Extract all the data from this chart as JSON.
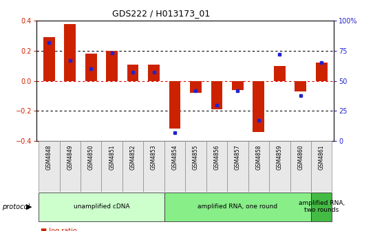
{
  "title": "GDS222 / H013173_01",
  "samples": [
    "GSM4848",
    "GSM4849",
    "GSM4850",
    "GSM4851",
    "GSM4852",
    "GSM4853",
    "GSM4854",
    "GSM4855",
    "GSM4856",
    "GSM4857",
    "GSM4858",
    "GSM4859",
    "GSM4860",
    "GSM4861"
  ],
  "log_ratio": [
    0.29,
    0.38,
    0.18,
    0.2,
    0.11,
    0.11,
    -0.32,
    -0.08,
    -0.19,
    -0.06,
    -0.34,
    0.1,
    -0.07,
    0.12
  ],
  "percentile_rank": [
    82,
    67,
    60,
    73,
    57,
    57,
    7,
    42,
    30,
    42,
    17,
    72,
    38,
    65
  ],
  "ylim_left": [
    -0.4,
    0.4
  ],
  "ylim_right": [
    0,
    100
  ],
  "yticks_left": [
    -0.4,
    -0.2,
    0.0,
    0.2,
    0.4
  ],
  "yticks_right": [
    0,
    25,
    50,
    75,
    100
  ],
  "ytick_labels_right": [
    "0",
    "25",
    "50",
    "75",
    "100%"
  ],
  "bar_color": "#cc2200",
  "dot_color": "#2222cc",
  "bg_color": "#ffffff",
  "proto_colors": [
    "#ccffcc",
    "#88ee88",
    "#44bb44"
  ],
  "proto_labels": [
    "unamplified cDNA",
    "amplified RNA, one round",
    "amplified RNA,\ntwo rounds"
  ],
  "proto_ranges": [
    [
      0,
      5
    ],
    [
      6,
      12
    ],
    [
      13,
      13
    ]
  ],
  "xlabel_color": "#cc2200",
  "ylabel_right_color": "#2222cc",
  "bar_width": 0.55
}
